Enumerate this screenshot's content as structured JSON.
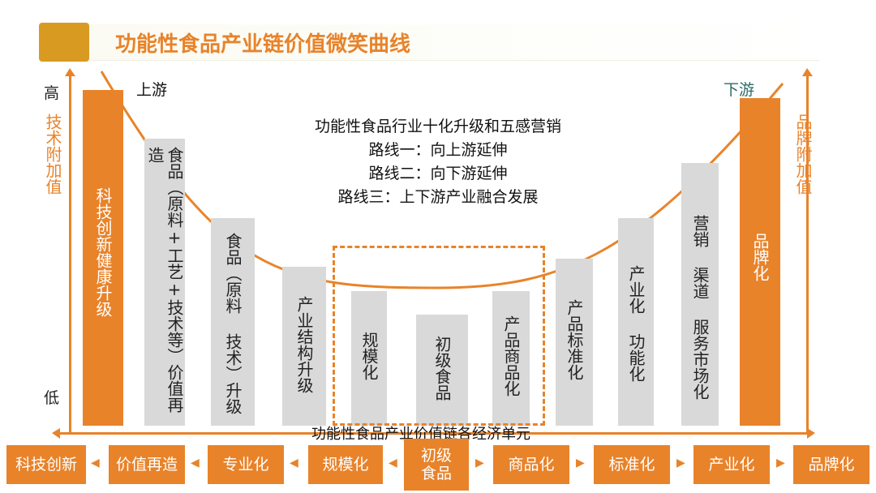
{
  "title": "功能性食品产业链价值微笑曲线",
  "axis": {
    "high": "高",
    "low": "低",
    "left_label": "技术附加值",
    "right_label": "品牌附加值"
  },
  "upstream": "上游",
  "downstream": "下游",
  "center_lines": [
    "功能性食品行业十化升级和五感营销",
    "路线一：向上游延伸",
    "路线二：向下游延伸",
    "路线三：上下游产业融合发展"
  ],
  "bars": [
    "科技创新健康升级",
    "食品（原料+工艺+技术等）价值再造",
    "食品（原料 技术）升级",
    "产业结构升级",
    "规模化",
    "初级食品",
    "产品商品化",
    "产品标准化",
    "产业化 功能化",
    "营销 渠道 服务市场化",
    "品牌化"
  ],
  "axis_caption": "功能性食品产业价值链各经济单元",
  "bottom_boxes": [
    "科技创新",
    "价值再造",
    "专业化",
    "规模化",
    "初级\n食品",
    "商品化",
    "标准化",
    "产业化",
    "品牌化"
  ],
  "colors": {
    "accent": "#e8832a",
    "title_block": "#d99a22",
    "bar_gray": "#d9d9d9"
  }
}
